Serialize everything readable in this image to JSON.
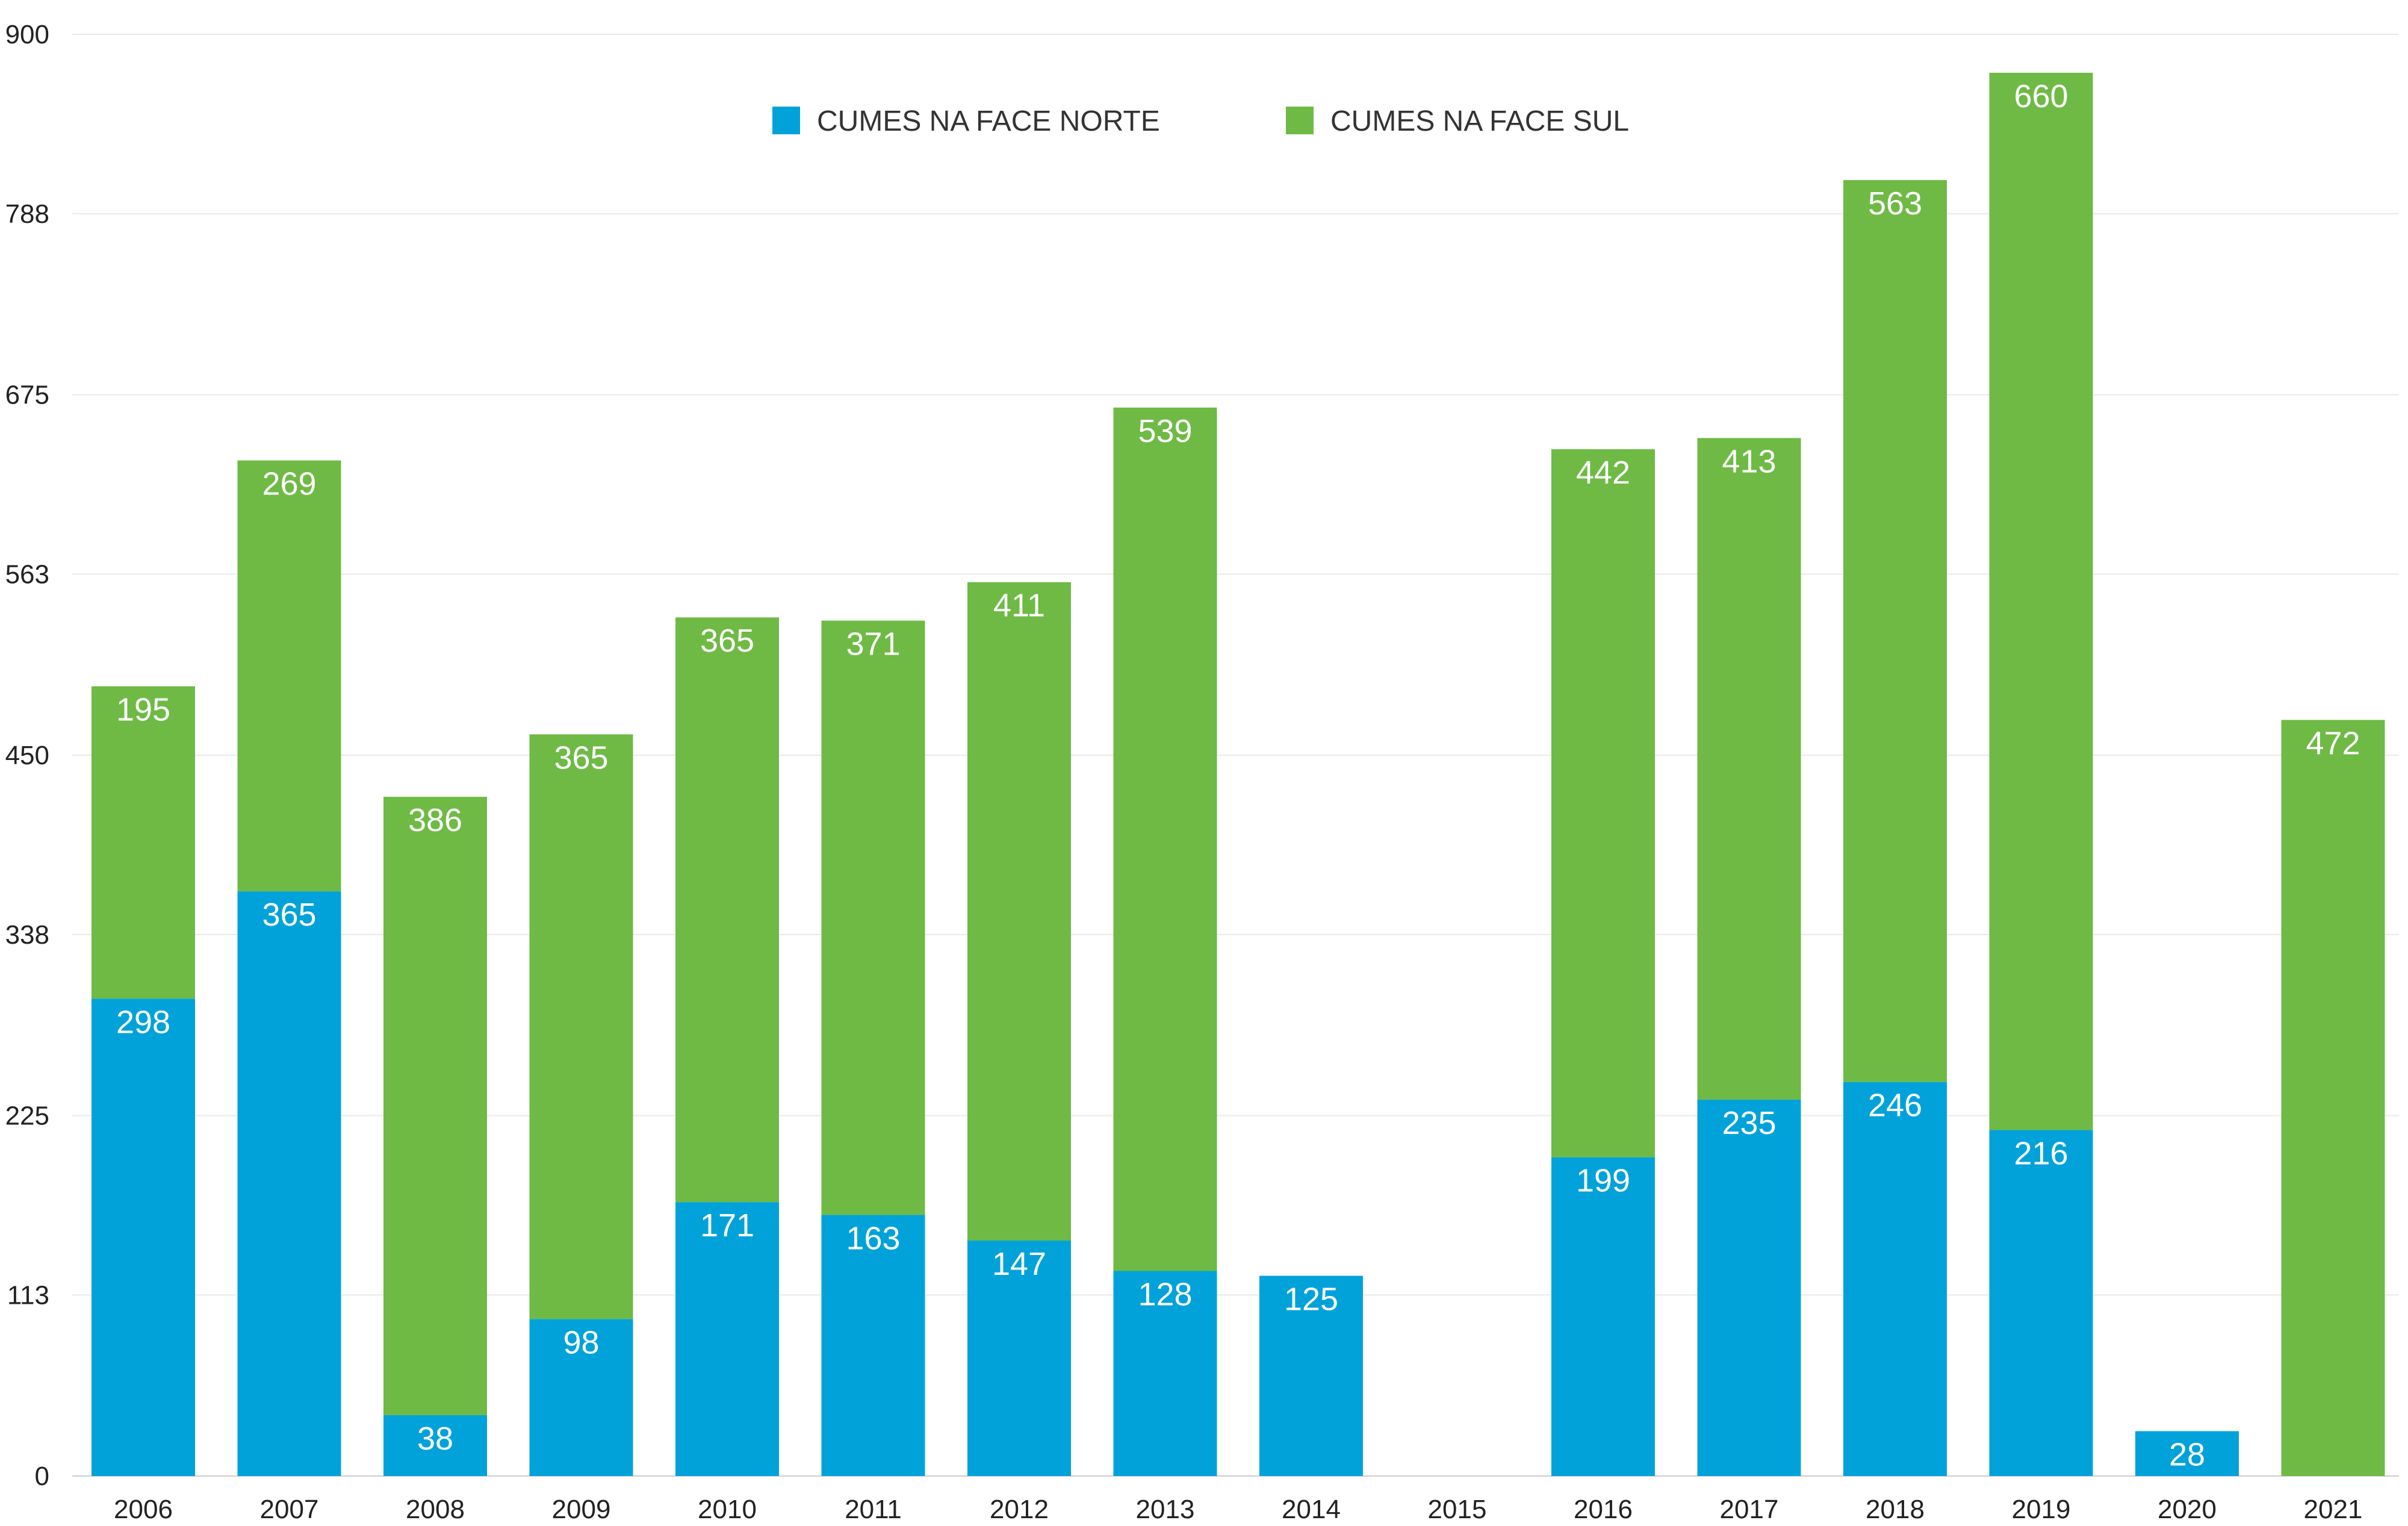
{
  "chart_data": {
    "type": "bar",
    "stacked": true,
    "title": "",
    "xlabel": "",
    "ylabel": "",
    "categories": [
      "2006",
      "2007",
      "2008",
      "2009",
      "2010",
      "2011",
      "2012",
      "2013",
      "2014",
      "2015",
      "2016",
      "2017",
      "2018",
      "2019",
      "2020",
      "2021"
    ],
    "series": [
      {
        "name": "CUMES NA FACE NORTE",
        "color": "#00a2d9",
        "values": [
          298,
          365,
          38,
          98,
          171,
          163,
          147,
          128,
          125,
          null,
          199,
          235,
          246,
          216,
          28,
          null
        ]
      },
      {
        "name": "CUMES NA FACE SUL",
        "color": "#6eba45",
        "values": [
          195,
          269,
          386,
          365,
          365,
          371,
          411,
          539,
          null,
          null,
          442,
          413,
          563,
          660,
          null,
          472
        ]
      }
    ],
    "ylim": [
      0,
      900
    ],
    "yticks": [
      "0",
      "113",
      "225",
      "338",
      "450",
      "563",
      "675",
      "788",
      "900"
    ],
    "grid": true,
    "legend_position": "top-center"
  }
}
